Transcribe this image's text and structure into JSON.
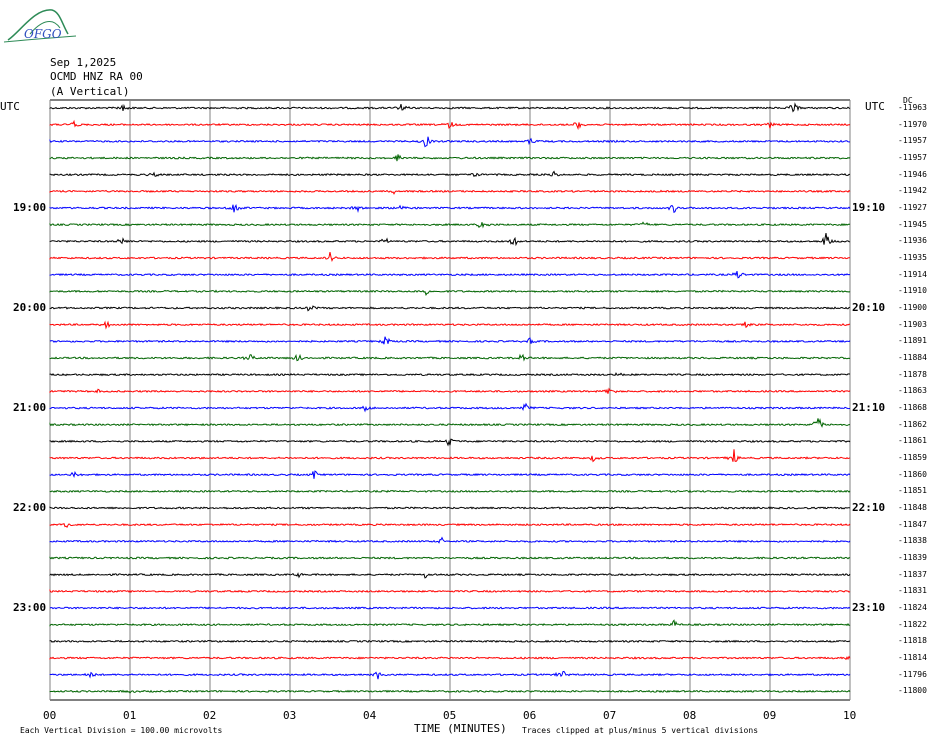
{
  "logo": {
    "text": "OFGO"
  },
  "header": {
    "date": "Sep 1,2025",
    "station": "OCMD HNZ RA 00",
    "component": "(A Vertical)",
    "utc_left": "UTC",
    "utc_right": "UTC",
    "dc_label": "DC"
  },
  "footer": {
    "scale_note": "Each Vertical Division =  100.00 microvolts",
    "xlabel": "TIME (MINUTES)",
    "clip_note": "Traces clipped at plus/minus 5 vertical divisions"
  },
  "colors": {
    "black": "#000000",
    "red": "#ff0000",
    "blue": "#0000ff",
    "green": "#006400",
    "grid": "#808080"
  },
  "chart_data": {
    "type": "line",
    "title": "OCMD HNZ RA 00 (A Vertical)",
    "xlabel": "TIME (MINUTES)",
    "xlim": [
      0,
      10
    ],
    "x_ticks": [
      "00",
      "01",
      "02",
      "03",
      "04",
      "05",
      "06",
      "07",
      "08",
      "09",
      "10"
    ],
    "left_hour_labels": [
      "19:00",
      "20:00",
      "21:00",
      "22:00",
      "23:00"
    ],
    "right_hour_labels": [
      "19:10",
      "20:10",
      "21:10",
      "22:10",
      "23:10"
    ],
    "trace_colors": [
      "black",
      "red",
      "blue",
      "green"
    ],
    "dc_offsets": [
      "-11963",
      "-11970",
      "-11957",
      "-11957",
      "-11946",
      "-11942",
      "-11927",
      "-11945",
      "-11936",
      "-11935",
      "-11914",
      "-11910",
      "-11900",
      "-11903",
      "-11891",
      "-11884",
      "-11878",
      "-11863",
      "-11868",
      "-11862",
      "-11861",
      "-11859",
      "-11860",
      "-11851",
      "-11848",
      "-11847",
      "-11838",
      "-11839",
      "-11837",
      "-11831",
      "-11824",
      "-11822",
      "-11818",
      "-11814",
      "-11796",
      "-11800"
    ],
    "events": [
      {
        "trace": 0,
        "minute": 0.9,
        "amp": 5
      },
      {
        "trace": 0,
        "minute": 4.4,
        "amp": 6
      },
      {
        "trace": 0,
        "minute": 9.3,
        "amp": 6
      },
      {
        "trace": 1,
        "minute": 0.3,
        "amp": 4
      },
      {
        "trace": 1,
        "minute": 5.0,
        "amp": 4
      },
      {
        "trace": 1,
        "minute": 6.6,
        "amp": 5
      },
      {
        "trace": 1,
        "minute": 9.0,
        "amp": 4
      },
      {
        "trace": 2,
        "minute": 4.7,
        "amp": 8
      },
      {
        "trace": 2,
        "minute": 6.0,
        "amp": 5
      },
      {
        "trace": 3,
        "minute": 4.35,
        "amp": 5
      },
      {
        "trace": 4,
        "minute": 1.3,
        "amp": 3
      },
      {
        "trace": 4,
        "minute": 5.3,
        "amp": 3
      },
      {
        "trace": 4,
        "minute": 6.3,
        "amp": 3
      },
      {
        "trace": 5,
        "minute": 4.3,
        "amp": 3
      },
      {
        "trace": 6,
        "minute": 2.3,
        "amp": 6
      },
      {
        "trace": 6,
        "minute": 3.85,
        "amp": 5
      },
      {
        "trace": 6,
        "minute": 4.4,
        "amp": 4
      },
      {
        "trace": 6,
        "minute": 7.8,
        "amp": 5
      },
      {
        "trace": 7,
        "minute": 5.4,
        "amp": 6
      },
      {
        "trace": 7,
        "minute": 7.45,
        "amp": 6
      },
      {
        "trace": 8,
        "minute": 0.9,
        "amp": 4
      },
      {
        "trace": 8,
        "minute": 4.2,
        "amp": 5
      },
      {
        "trace": 8,
        "minute": 5.8,
        "amp": 6
      },
      {
        "trace": 8,
        "minute": 9.7,
        "amp": 9
      },
      {
        "trace": 9,
        "minute": 3.5,
        "amp": 6
      },
      {
        "trace": 10,
        "minute": 8.6,
        "amp": 6
      },
      {
        "trace": 11,
        "minute": 4.7,
        "amp": 6
      },
      {
        "trace": 12,
        "minute": 3.25,
        "amp": 5
      },
      {
        "trace": 13,
        "minute": 0.7,
        "amp": 4
      },
      {
        "trace": 13,
        "minute": 8.7,
        "amp": 5
      },
      {
        "trace": 14,
        "minute": 4.2,
        "amp": 7
      },
      {
        "trace": 14,
        "minute": 6.0,
        "amp": 4
      },
      {
        "trace": 15,
        "minute": 2.5,
        "amp": 5
      },
      {
        "trace": 15,
        "minute": 3.1,
        "amp": 6
      },
      {
        "trace": 15,
        "minute": 5.9,
        "amp": 5
      },
      {
        "trace": 16,
        "minute": 7.1,
        "amp": 4
      },
      {
        "trace": 17,
        "minute": 0.6,
        "amp": 3
      },
      {
        "trace": 17,
        "minute": 7.0,
        "amp": 4
      },
      {
        "trace": 18,
        "minute": 3.95,
        "amp": 4
      },
      {
        "trace": 18,
        "minute": 5.95,
        "amp": 5
      },
      {
        "trace": 19,
        "minute": 9.6,
        "amp": 10
      },
      {
        "trace": 20,
        "minute": 5.0,
        "amp": 7
      },
      {
        "trace": 21,
        "minute": 6.8,
        "amp": 4
      },
      {
        "trace": 21,
        "minute": 8.55,
        "amp": 9
      },
      {
        "trace": 22,
        "minute": 0.3,
        "amp": 4
      },
      {
        "trace": 22,
        "minute": 3.3,
        "amp": 5
      },
      {
        "trace": 25,
        "minute": 0.2,
        "amp": 4
      },
      {
        "trace": 26,
        "minute": 4.9,
        "amp": 4
      },
      {
        "trace": 28,
        "minute": 4.7,
        "amp": 4
      },
      {
        "trace": 28,
        "minute": 3.1,
        "amp": 3
      },
      {
        "trace": 31,
        "minute": 7.8,
        "amp": 5
      },
      {
        "trace": 33,
        "minute": 10.0,
        "amp": 3
      },
      {
        "trace": 34,
        "minute": 0.5,
        "amp": 4
      },
      {
        "trace": 34,
        "minute": 4.1,
        "amp": 5
      },
      {
        "trace": 34,
        "minute": 6.4,
        "amp": 6
      },
      {
        "trace": 35,
        "minute": 1.0,
        "amp": 2
      }
    ]
  }
}
